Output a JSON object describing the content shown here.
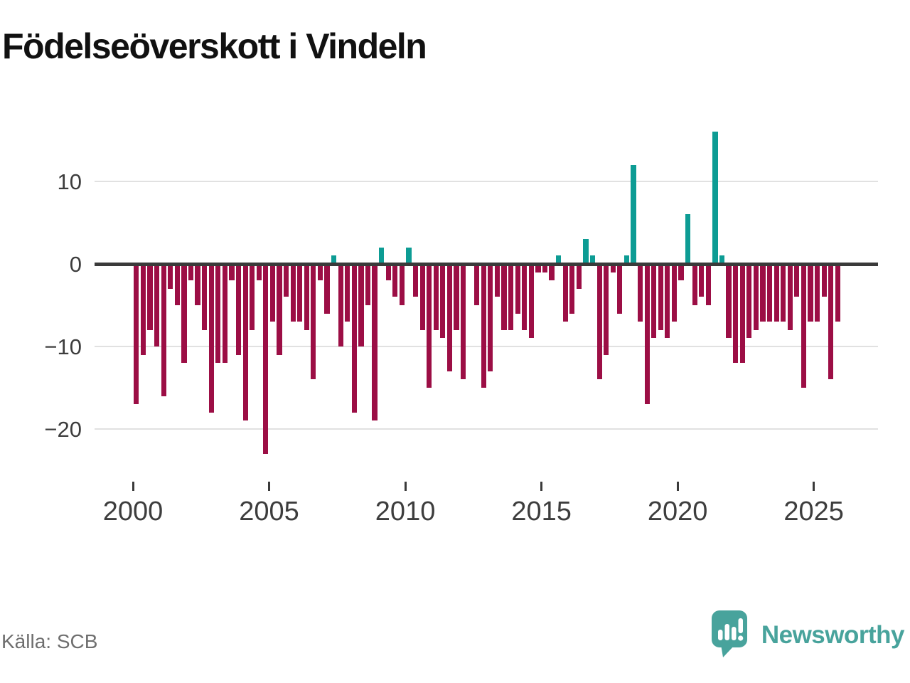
{
  "title": "Födelseöverskott i Vindeln",
  "source": "Källa: SCB",
  "branding": {
    "wordmark": "Newsworthy",
    "icon": "newsworthy-speech-bubble-bar-chart-icon"
  },
  "colors": {
    "negative_bar": "#9c0e45",
    "positive_bar": "#0d9c94",
    "axis": "#3a3a3a",
    "grid": "#e1e1e1",
    "tick_text": "#3d3d3d",
    "source_text": "#6e6e6e",
    "brand": "#48a39c"
  },
  "chart_data": {
    "type": "bar",
    "title": "Födelseöverskott i Vindeln",
    "start_period": "2000Q1",
    "end_period": "2025Q4",
    "frequency": "quarterly",
    "values": [
      -17,
      -11,
      -8,
      -10,
      -16,
      -3,
      -5,
      -12,
      -2,
      -5,
      -8,
      -18,
      -12,
      -12,
      -2,
      -11,
      -19,
      -8,
      -2,
      -23,
      -7,
      -11,
      -4,
      -7,
      -7,
      -8,
      -14,
      -2,
      -6,
      1,
      -10,
      -7,
      -18,
      -10,
      -5,
      -19,
      2,
      -2,
      -4,
      -5,
      2,
      -4,
      -8,
      -15,
      -8,
      -9,
      -13,
      -8,
      -14,
      0,
      -5,
      -15,
      -13,
      -4,
      -8,
      -8,
      -6,
      -8,
      -9,
      -1,
      -1,
      -2,
      1,
      -7,
      -6,
      -3,
      3,
      1,
      -14,
      -11,
      -1,
      -6,
      1,
      12,
      -7,
      -17,
      -9,
      -8,
      -9,
      -7,
      -2,
      6,
      -5,
      -4,
      -5,
      16,
      1,
      -9,
      -12,
      -12,
      -9,
      -8,
      -7,
      -7,
      -7,
      -7,
      -8,
      -4,
      -15,
      -7,
      -7,
      -4,
      -14,
      -7
    ],
    "x_ticks": [
      "2000",
      "2005",
      "2010",
      "2015",
      "2020",
      "2025"
    ],
    "y_ticks": [
      "10",
      "0",
      "−10",
      "−20"
    ],
    "y_tick_values": [
      10,
      0,
      -10,
      -20
    ],
    "ylim": [
      -24,
      17
    ],
    "grid": "horizontal-only",
    "legend": "none"
  }
}
